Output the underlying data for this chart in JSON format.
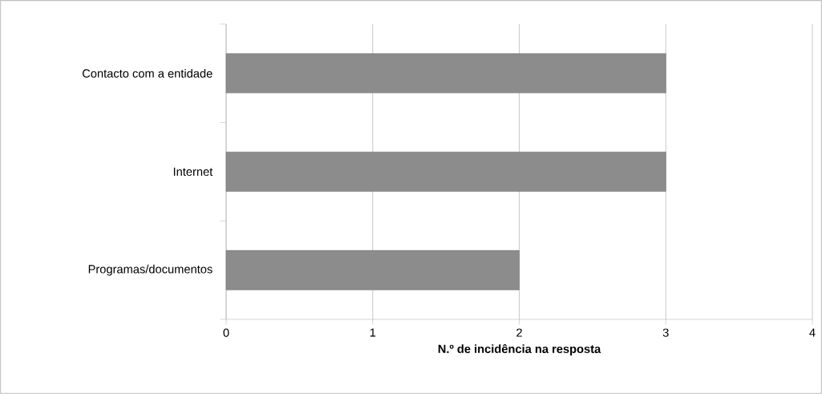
{
  "chart_data": {
    "type": "bar",
    "orientation": "horizontal",
    "xlabel": "N.º de incidência na resposta",
    "categories": [
      "Contacto com a entidade",
      "Internet",
      "Programas/documentos"
    ],
    "values": [
      3,
      3,
      2
    ],
    "color": "#8c8c8c",
    "xlim": [
      0,
      4
    ],
    "xticks": [
      0,
      1,
      2,
      3,
      4
    ],
    "grid": "x"
  }
}
